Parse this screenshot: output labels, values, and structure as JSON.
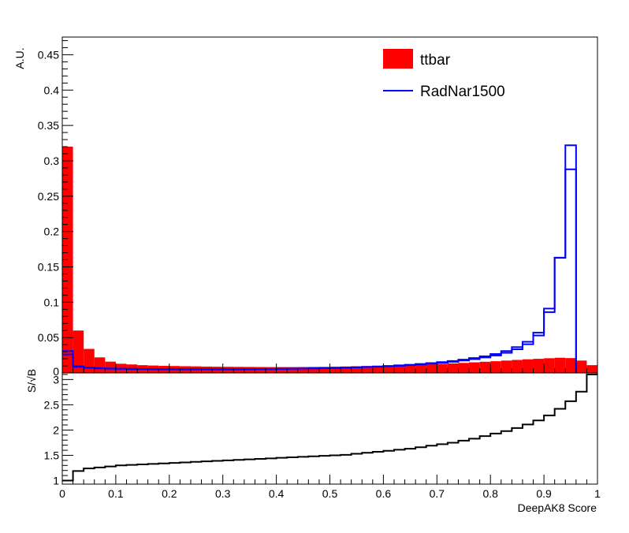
{
  "chart_data": [
    {
      "type": "bar",
      "panel": "upper",
      "ylabel": "A.U.",
      "xlim": [
        0,
        1
      ],
      "ylim": [
        0,
        0.475
      ],
      "yticks": [
        0.05,
        0.1,
        0.15,
        0.2,
        0.25,
        0.3,
        0.35,
        0.4,
        0.45
      ],
      "ytick_labels": [
        "0.05",
        "0.1",
        "0.15",
        "0.2",
        "0.25",
        "0.3",
        "0.35",
        "0.4",
        "0.45"
      ],
      "y_origin_label": "0",
      "bin_width": 0.02,
      "legend_position": "top-right",
      "legend": [
        {
          "label": "ttbar",
          "style": "filled"
        },
        {
          "label": "RadNar1500",
          "style": "line"
        }
      ],
      "series": [
        {
          "name": "ttbar",
          "style": "filled",
          "color": "#ff0000",
          "values": [
            0.32,
            0.06,
            0.034,
            0.022,
            0.016,
            0.013,
            0.012,
            0.011,
            0.0105,
            0.01,
            0.0098,
            0.0095,
            0.0093,
            0.009,
            0.0088,
            0.0087,
            0.0086,
            0.0085,
            0.0084,
            0.0083,
            0.0083,
            0.0083,
            0.0084,
            0.0085,
            0.0086,
            0.0088,
            0.0091,
            0.0094,
            0.0097,
            0.01,
            0.0104,
            0.0108,
            0.0112,
            0.0117,
            0.0122,
            0.0128,
            0.0135,
            0.0142,
            0.015,
            0.0158,
            0.0166,
            0.0175,
            0.0184,
            0.0193,
            0.02,
            0.0208,
            0.0215,
            0.021,
            0.0175,
            0.011
          ]
        },
        {
          "name": "RadNar1500",
          "style": "step",
          "color": "#0000ff",
          "values": [
            0.031,
            0.0095,
            0.0078,
            0.0068,
            0.0064,
            0.006,
            0.0058,
            0.0056,
            0.0055,
            0.0054,
            0.0054,
            0.0053,
            0.0053,
            0.0053,
            0.0053,
            0.0053,
            0.0054,
            0.0055,
            0.0056,
            0.0057,
            0.0059,
            0.0061,
            0.0063,
            0.0066,
            0.0069,
            0.0072,
            0.0076,
            0.0081,
            0.0086,
            0.0092,
            0.0099,
            0.0107,
            0.0116,
            0.0127,
            0.0139,
            0.0153,
            0.0169,
            0.0188,
            0.021,
            0.0236,
            0.0268,
            0.031,
            0.0365,
            0.044,
            0.057,
            0.091,
            0.163,
            0.322,
            0.0,
            0.0
          ]
        },
        {
          "name": "RadNar1500",
          "style": "step",
          "color": "#0000ff",
          "values": [
            0.026,
            0.0085,
            0.0072,
            0.0064,
            0.006,
            0.0057,
            0.0055,
            0.0054,
            0.0053,
            0.0052,
            0.0052,
            0.0052,
            0.0051,
            0.0051,
            0.0051,
            0.0052,
            0.0052,
            0.0053,
            0.0054,
            0.0055,
            0.0057,
            0.0059,
            0.0061,
            0.0064,
            0.0067,
            0.007,
            0.0074,
            0.0078,
            0.0083,
            0.0088,
            0.0095,
            0.0102,
            0.011,
            0.012,
            0.0131,
            0.0144,
            0.0158,
            0.0175,
            0.0195,
            0.0219,
            0.0247,
            0.0285,
            0.0335,
            0.0405,
            0.053,
            0.086,
            0.163,
            0.288,
            0.0,
            0.0
          ]
        }
      ]
    },
    {
      "type": "line",
      "panel": "lower",
      "ylabel": "S/√B",
      "xlabel": "DeepAK8 Score",
      "xlim": [
        0,
        1
      ],
      "ylim": [
        0.93,
        3.13
      ],
      "xticks": [
        0,
        0.1,
        0.2,
        0.3,
        0.4,
        0.5,
        0.6,
        0.7,
        0.8,
        0.9,
        1
      ],
      "xtick_labels": [
        "0",
        "0.1",
        "0.2",
        "0.3",
        "0.4",
        "0.5",
        "0.6",
        "0.7",
        "0.8",
        "0.9",
        "1"
      ],
      "yticks": [
        1,
        1.5,
        2,
        2.5,
        3
      ],
      "ytick_labels": [
        "1",
        "1.5",
        "2",
        "2.5",
        "3"
      ],
      "bin_width": 0.02,
      "series": [
        {
          "style": "step",
          "color": "#000000",
          "values": [
            1.0,
            1.19,
            1.24,
            1.26,
            1.28,
            1.3,
            1.31,
            1.32,
            1.33,
            1.34,
            1.35,
            1.36,
            1.37,
            1.38,
            1.39,
            1.4,
            1.41,
            1.42,
            1.43,
            1.44,
            1.45,
            1.46,
            1.47,
            1.48,
            1.49,
            1.5,
            1.51,
            1.53,
            1.55,
            1.57,
            1.59,
            1.61,
            1.63,
            1.66,
            1.69,
            1.72,
            1.75,
            1.79,
            1.83,
            1.88,
            1.93,
            1.98,
            2.04,
            2.11,
            2.19,
            2.29,
            2.42,
            2.57,
            2.76,
            3.1
          ]
        }
      ]
    }
  ]
}
